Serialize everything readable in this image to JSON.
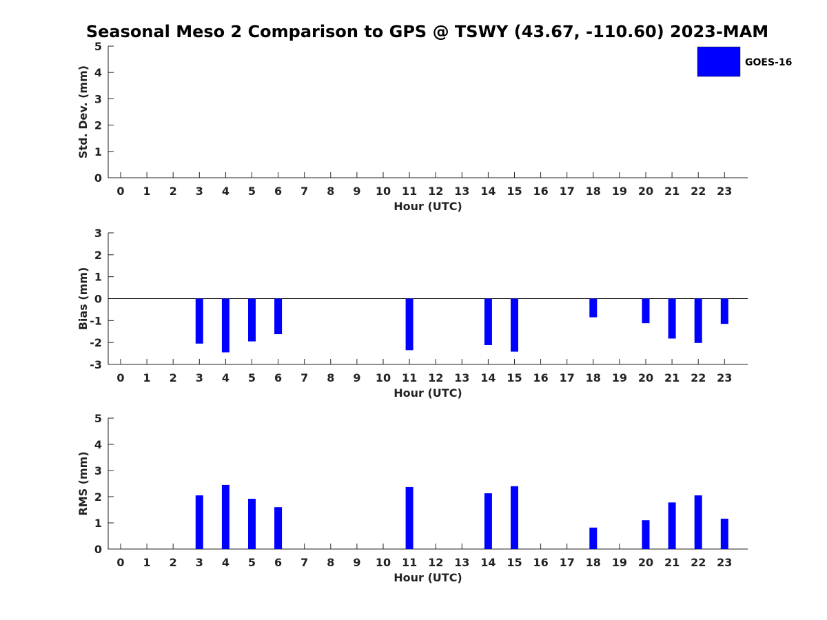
{
  "title": "Seasonal Meso 2 Comparison to GPS @ TSWY (43.67, -110.60) 2023-MAM",
  "colors": {
    "bar": "#0000ff",
    "axis": "#222222"
  },
  "legend": {
    "label": "GOES-16"
  },
  "chart_data": [
    {
      "type": "bar",
      "name": "std",
      "categories": [
        "0",
        "1",
        "2",
        "3",
        "4",
        "5",
        "6",
        "7",
        "8",
        "9",
        "10",
        "11",
        "12",
        "13",
        "14",
        "15",
        "16",
        "17",
        "18",
        "19",
        "20",
        "21",
        "22",
        "23"
      ],
      "series": [
        {
          "name": "GOES-16",
          "values": [
            null,
            null,
            null,
            null,
            null,
            null,
            null,
            null,
            null,
            null,
            null,
            null,
            null,
            null,
            null,
            null,
            null,
            null,
            null,
            null,
            null,
            null,
            null,
            null
          ]
        }
      ],
      "ylabel": "Std. Dev. (mm)",
      "xlabel": "Hour (UTC)",
      "ylim": [
        0,
        5
      ],
      "yticks": [
        "0",
        "1",
        "2",
        "3",
        "4",
        "5"
      ],
      "legend": "top-right"
    },
    {
      "type": "bar",
      "name": "bias",
      "categories": [
        "0",
        "1",
        "2",
        "3",
        "4",
        "5",
        "6",
        "7",
        "8",
        "9",
        "10",
        "11",
        "12",
        "13",
        "14",
        "15",
        "16",
        "17",
        "18",
        "19",
        "20",
        "21",
        "22",
        "23"
      ],
      "series": [
        {
          "name": "GOES-16",
          "values": [
            null,
            null,
            null,
            -2.05,
            -2.45,
            -1.95,
            -1.62,
            null,
            null,
            null,
            null,
            -2.35,
            null,
            null,
            -2.12,
            -2.42,
            null,
            null,
            -0.85,
            null,
            -1.12,
            -1.82,
            -2.02,
            -1.15
          ]
        }
      ],
      "ylabel": "Bias (mm)",
      "xlabel": "Hour (UTC)",
      "ylim": [
        -3,
        3
      ],
      "yticks": [
        "-3",
        "-2",
        "-1",
        "0",
        "1",
        "2",
        "3"
      ],
      "zero_line": true
    },
    {
      "type": "bar",
      "name": "rms",
      "categories": [
        "0",
        "1",
        "2",
        "3",
        "4",
        "5",
        "6",
        "7",
        "8",
        "9",
        "10",
        "11",
        "12",
        "13",
        "14",
        "15",
        "16",
        "17",
        "18",
        "19",
        "20",
        "21",
        "22",
        "23"
      ],
      "series": [
        {
          "name": "GOES-16",
          "values": [
            null,
            null,
            null,
            2.05,
            2.45,
            1.92,
            1.6,
            null,
            null,
            null,
            null,
            2.37,
            null,
            null,
            2.13,
            2.4,
            null,
            null,
            0.82,
            null,
            1.1,
            1.78,
            2.05,
            1.16
          ]
        }
      ],
      "ylabel": "RMS (mm)",
      "xlabel": "Hour (UTC)",
      "ylim": [
        0,
        5
      ],
      "yticks": [
        "0",
        "1",
        "2",
        "3",
        "4",
        "5"
      ]
    }
  ]
}
